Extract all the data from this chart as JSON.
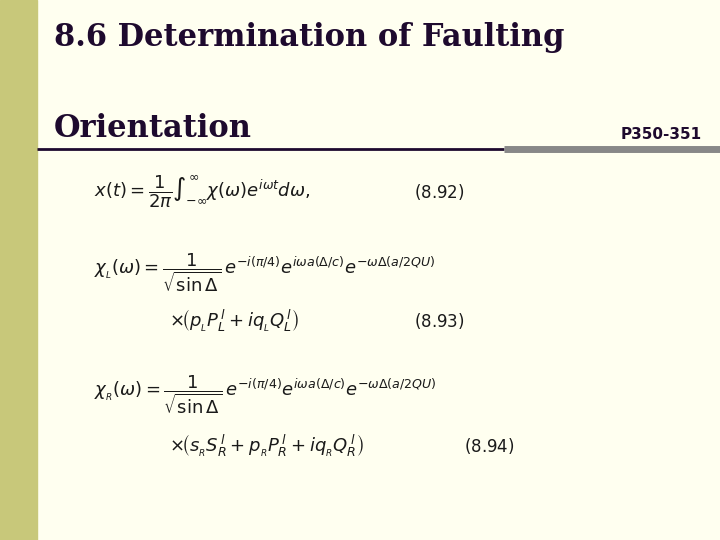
{
  "bg_color": "#FFFFF0",
  "left_bar_color": "#C8C87A",
  "title_color": "#1E0A2E",
  "title_line1": "8.6 Determination of Faulting",
  "title_line2": "Orientation",
  "page_ref": "P350-351",
  "divider_color": "#1E0A2E",
  "divider_right_color": "#888888",
  "eq_color": "#1a1a1a",
  "title_fontsize": 22,
  "page_ref_fontsize": 11,
  "eq_fontsize": 13,
  "label_fontsize": 12
}
